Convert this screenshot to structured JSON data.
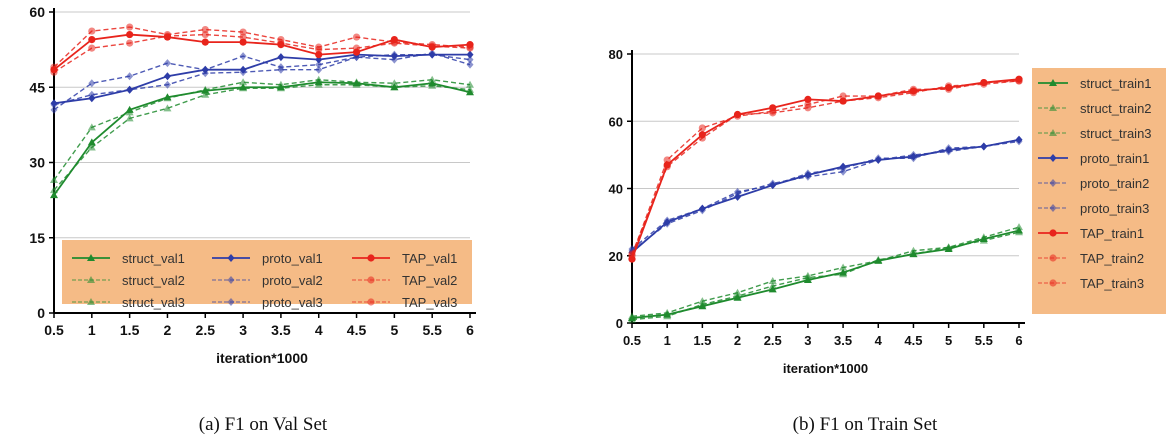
{
  "colors": {
    "struct": "#1f8b2e",
    "proto": "#2e3da8",
    "tap": "#e8241c",
    "legend_bg": "#f5bb86",
    "grid": "#c8c8c8"
  },
  "chart_data": [
    {
      "type": "line",
      "caption": "(a)  F1 on Val Set",
      "xlabel": "iteration*1000",
      "ylabel": "",
      "xlim": [
        0.5,
        6
      ],
      "ylim": [
        0,
        60
      ],
      "grid": "horizontal",
      "legend_position": "bottom",
      "x": [
        0.5,
        1,
        1.5,
        2,
        2.5,
        3,
        3.5,
        4,
        4.5,
        5,
        5.5,
        6
      ],
      "x_tick_labels": [
        "0.5",
        "1",
        "1.5",
        "2",
        "2.5",
        "3",
        "3.5",
        "4",
        "4.5",
        "5",
        "5.5",
        "6"
      ],
      "y_ticks": [
        0,
        15,
        30,
        45,
        60
      ],
      "y_tick_labels": [
        "0",
        "15",
        "30",
        "45",
        "60"
      ],
      "series": [
        {
          "name": "struct_val1",
          "group": "struct",
          "style": "solid",
          "marker": "triangle",
          "values": [
            23.5,
            34.0,
            40.5,
            43.0,
            44.3,
            45.0,
            45.0,
            46.0,
            45.8,
            45.0,
            45.8,
            44.0
          ]
        },
        {
          "name": "struct_val2",
          "group": "struct",
          "style": "dashed",
          "marker": "triangle",
          "values": [
            26.5,
            37.0,
            40.0,
            42.8,
            44.5,
            46.0,
            45.5,
            46.5,
            46.0,
            45.8,
            46.5,
            45.5
          ]
        },
        {
          "name": "struct_val3",
          "group": "struct",
          "style": "dashed",
          "marker": "triangle",
          "values": [
            24.5,
            33.0,
            38.8,
            40.8,
            43.5,
            44.8,
            44.8,
            45.5,
            45.5,
            45.0,
            45.3,
            44.5
          ]
        },
        {
          "name": "proto_val1",
          "group": "proto",
          "style": "solid",
          "marker": "diamond",
          "values": [
            41.8,
            42.8,
            44.5,
            47.2,
            48.5,
            48.5,
            51.0,
            50.5,
            51.5,
            51.2,
            51.5,
            51.5
          ]
        },
        {
          "name": "proto_val2",
          "group": "proto",
          "style": "dashed",
          "marker": "diamond",
          "values": [
            40.5,
            45.8,
            47.2,
            49.8,
            48.5,
            51.2,
            49.0,
            49.5,
            51.0,
            50.5,
            51.8,
            49.5
          ]
        },
        {
          "name": "proto_val3",
          "group": "proto",
          "style": "dashed",
          "marker": "diamond",
          "values": [
            41.5,
            43.5,
            44.5,
            45.5,
            47.8,
            48.0,
            48.5,
            48.5,
            51.0,
            51.5,
            51.5,
            50.5
          ]
        },
        {
          "name": "TAP_val1",
          "group": "tap",
          "style": "solid",
          "marker": "circle",
          "values": [
            48.5,
            54.5,
            55.5,
            55.0,
            54.0,
            54.0,
            53.5,
            51.5,
            52.0,
            54.5,
            53.0,
            53.5
          ]
        },
        {
          "name": "TAP_val2",
          "group": "tap",
          "style": "dashed",
          "marker": "circle",
          "values": [
            49.0,
            56.2,
            57.0,
            55.5,
            56.5,
            56.0,
            54.5,
            53.0,
            55.0,
            54.0,
            53.5,
            53.0
          ]
        },
        {
          "name": "TAP_val3",
          "group": "tap",
          "style": "dashed",
          "marker": "circle",
          "values": [
            48.0,
            52.8,
            53.8,
            55.2,
            55.5,
            55.0,
            53.8,
            52.5,
            52.8,
            53.8,
            53.2,
            52.8
          ]
        }
      ]
    },
    {
      "type": "line",
      "caption": "(b)  F1 on Train Set",
      "xlabel": "iteration*1000",
      "ylabel": "",
      "xlim": [
        0.5,
        6
      ],
      "ylim": [
        0,
        80
      ],
      "grid": "horizontal",
      "legend_position": "right",
      "x": [
        0.5,
        1,
        1.5,
        2,
        2.5,
        3,
        3.5,
        4,
        4.5,
        5,
        5.5,
        6
      ],
      "x_tick_labels": [
        "0.5",
        "1",
        "1.5",
        "2",
        "2.5",
        "3",
        "3.5",
        "4",
        "4.5",
        "5",
        "5.5",
        "6"
      ],
      "y_ticks": [
        0,
        20,
        40,
        60,
        80
      ],
      "y_tick_labels": [
        "0",
        "20",
        "40",
        "60",
        "80"
      ],
      "series": [
        {
          "name": "struct_train1",
          "group": "struct",
          "style": "solid",
          "marker": "triangle",
          "values": [
            1.5,
            2.5,
            5.0,
            7.5,
            10.0,
            12.8,
            15.0,
            18.5,
            20.5,
            22.0,
            25.0,
            27.5
          ]
        },
        {
          "name": "struct_train2",
          "group": "struct",
          "style": "dashed",
          "marker": "triangle",
          "values": [
            2.0,
            3.0,
            6.5,
            9.0,
            12.5,
            14.0,
            16.5,
            18.5,
            21.5,
            22.5,
            25.5,
            28.5
          ]
        },
        {
          "name": "struct_train3",
          "group": "struct",
          "style": "dashed",
          "marker": "triangle",
          "values": [
            1.0,
            2.0,
            5.5,
            8.0,
            11.0,
            13.5,
            14.5,
            18.8,
            20.5,
            22.5,
            24.5,
            27.0
          ]
        },
        {
          "name": "proto_train1",
          "group": "proto",
          "style": "solid",
          "marker": "diamond",
          "values": [
            21.0,
            30.0,
            34.0,
            37.5,
            41.0,
            44.0,
            46.5,
            48.5,
            49.5,
            51.5,
            52.5,
            54.5
          ]
        },
        {
          "name": "proto_train2",
          "group": "proto",
          "style": "dashed",
          "marker": "diamond",
          "values": [
            22.0,
            30.5,
            34.0,
            39.0,
            41.0,
            44.5,
            46.0,
            49.0,
            49.0,
            52.0,
            52.5,
            54.0
          ]
        },
        {
          "name": "proto_train3",
          "group": "proto",
          "style": "dashed",
          "marker": "diamond",
          "values": [
            21.5,
            29.5,
            33.5,
            38.5,
            41.5,
            43.5,
            45.0,
            48.5,
            50.0,
            51.0,
            52.5,
            54.5
          ]
        },
        {
          "name": "TAP_train1",
          "group": "tap",
          "style": "solid",
          "marker": "circle",
          "values": [
            19.0,
            47.0,
            56.0,
            62.0,
            64.0,
            66.5,
            66.0,
            67.5,
            69.0,
            70.0,
            71.5,
            72.5
          ]
        },
        {
          "name": "TAP_train2",
          "group": "tap",
          "style": "dashed",
          "marker": "circle",
          "values": [
            20.0,
            48.5,
            58.0,
            61.5,
            63.0,
            65.0,
            67.5,
            67.5,
            69.5,
            69.5,
            71.5,
            72.0
          ]
        },
        {
          "name": "TAP_train3",
          "group": "tap",
          "style": "dashed",
          "marker": "circle",
          "values": [
            20.5,
            46.5,
            55.0,
            62.0,
            62.5,
            64.0,
            66.0,
            67.0,
            68.5,
            70.5,
            71.0,
            72.0
          ]
        }
      ]
    }
  ]
}
